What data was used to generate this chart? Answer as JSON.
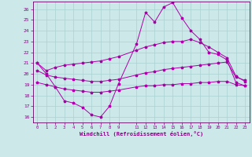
{
  "background_color": "#cde8e8",
  "grid_color": "#aad0d0",
  "line_color": "#aa00aa",
  "tick_color": "#880088",
  "xlabel": "Windchill (Refroidissement éolien,°C)",
  "xlim": [
    -0.5,
    23.5
  ],
  "ylim": [
    15.5,
    26.7
  ],
  "xticks": [
    0,
    1,
    2,
    3,
    4,
    5,
    6,
    7,
    8,
    9,
    11,
    12,
    13,
    14,
    15,
    16,
    17,
    18,
    19,
    20,
    21,
    22,
    23
  ],
  "yticks": [
    16,
    17,
    18,
    19,
    20,
    21,
    22,
    23,
    24,
    25,
    26
  ],
  "line1_x": [
    0,
    1,
    2,
    3,
    4,
    5,
    6,
    7,
    8,
    9,
    11,
    12,
    13,
    14,
    15,
    16,
    17,
    18,
    19,
    20,
    21,
    22,
    23
  ],
  "line1_y": [
    21.0,
    20.0,
    18.8,
    17.5,
    17.3,
    16.9,
    16.2,
    16.0,
    17.0,
    19.1,
    22.8,
    25.7,
    24.8,
    26.2,
    26.6,
    25.2,
    24.0,
    23.2,
    22.0,
    21.8,
    21.3,
    19.2,
    18.9
  ],
  "line2_x": [
    0,
    1,
    2,
    3,
    4,
    5,
    6,
    7,
    8,
    9,
    11,
    12,
    13,
    14,
    15,
    16,
    17,
    18,
    19,
    20,
    21,
    22,
    23
  ],
  "line2_y": [
    21.0,
    20.3,
    20.6,
    20.8,
    20.9,
    21.0,
    21.1,
    21.2,
    21.4,
    21.6,
    22.2,
    22.5,
    22.7,
    22.9,
    23.0,
    23.0,
    23.2,
    22.9,
    22.5,
    22.0,
    21.5,
    19.8,
    19.3
  ],
  "line3_x": [
    0,
    1,
    2,
    3,
    4,
    5,
    6,
    7,
    8,
    9,
    11,
    12,
    13,
    14,
    15,
    16,
    17,
    18,
    19,
    20,
    21,
    22,
    23
  ],
  "line3_y": [
    20.3,
    19.9,
    19.7,
    19.6,
    19.5,
    19.4,
    19.3,
    19.3,
    19.4,
    19.5,
    19.9,
    20.1,
    20.2,
    20.4,
    20.5,
    20.6,
    20.7,
    20.8,
    20.9,
    21.0,
    21.1,
    19.7,
    19.4
  ],
  "line4_x": [
    0,
    1,
    2,
    3,
    4,
    5,
    6,
    7,
    8,
    9,
    11,
    12,
    13,
    14,
    15,
    16,
    17,
    18,
    19,
    20,
    21,
    22,
    23
  ],
  "line4_y": [
    19.2,
    19.0,
    18.8,
    18.6,
    18.5,
    18.4,
    18.3,
    18.3,
    18.4,
    18.5,
    18.8,
    18.9,
    18.9,
    19.0,
    19.0,
    19.1,
    19.1,
    19.2,
    19.2,
    19.3,
    19.3,
    19.0,
    18.9
  ]
}
